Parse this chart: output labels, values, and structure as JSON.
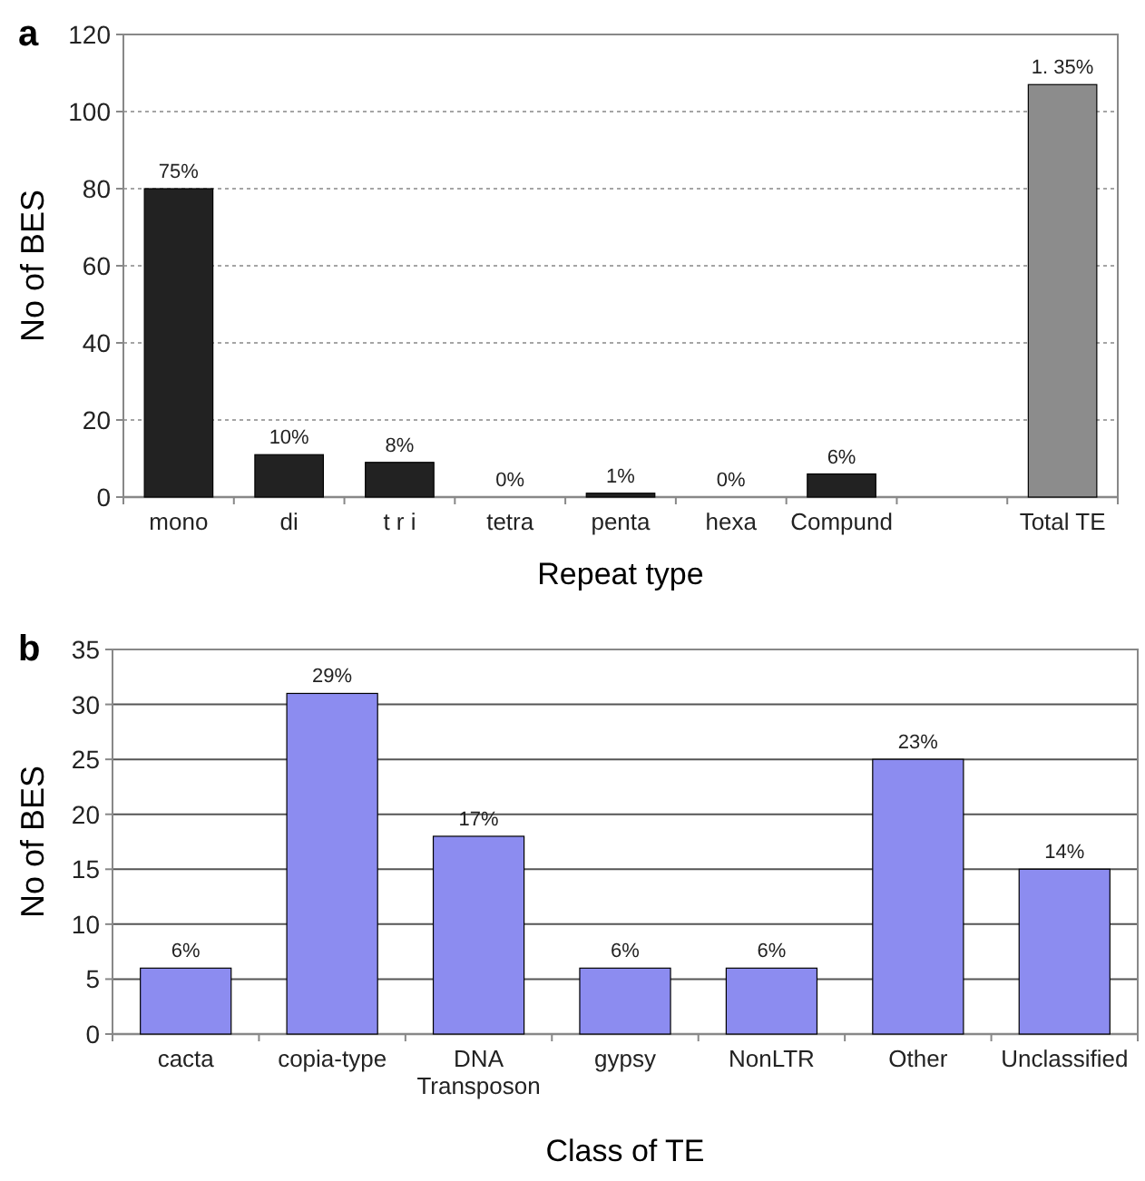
{
  "chart_data": [
    {
      "type": "bar",
      "title": "a",
      "xlabel": "Repeat type",
      "ylabel": "No of BES",
      "categories": [
        "mono",
        "di",
        "t r i",
        "tetra",
        "penta",
        "hexa",
        "Compund",
        null,
        "Total TE"
      ],
      "values": [
        80,
        11,
        9,
        0,
        1,
        0,
        6,
        null,
        107
      ],
      "colors": [
        "#222222",
        "#222222",
        "#222222",
        "#222222",
        "#222222",
        "#222222",
        "#222222",
        null,
        "#8c8c8c"
      ],
      "annotations": [
        {
          "text": "75%",
          "x": "mono",
          "y": 80
        },
        {
          "text": "10%",
          "x": "di",
          "y": 11
        },
        {
          "text": "8%",
          "x": "t r i",
          "y": 9
        },
        {
          "text": "0%",
          "x": "tetra",
          "y": 0
        },
        {
          "text": "1%",
          "x": "penta",
          "y": 1
        },
        {
          "text": "0%",
          "x": "hexa",
          "y": 0
        },
        {
          "text": "6%",
          "x": "Compund",
          "y": 6
        },
        {
          "text": "1. 35%",
          "x": "Total TE",
          "y": 107
        }
      ],
      "ylim": [
        0,
        120
      ],
      "yticks": [
        0,
        20,
        40,
        60,
        80,
        100,
        120
      ],
      "grid": "y"
    },
    {
      "type": "bar",
      "title": "b",
      "xlabel": "Class of TE",
      "ylabel": "No of BES",
      "categories": [
        "cacta",
        "copia-type",
        "DNA Transposon",
        "gypsy",
        "NonLTR",
        "Other",
        "Unclassified"
      ],
      "values": [
        6,
        31,
        18,
        6,
        6,
        25,
        15
      ],
      "color": "#8c8cf0",
      "annotations": [
        {
          "text": "6%",
          "x": "cacta",
          "y": 6
        },
        {
          "text": "29%",
          "x": "copia-type",
          "y": 31
        },
        {
          "text": "17%",
          "x": "DNA Transposon",
          "y": 18
        },
        {
          "text": "6%",
          "x": "gypsy",
          "y": 6
        },
        {
          "text": "6%",
          "x": "NonLTR",
          "y": 6
        },
        {
          "text": "23%",
          "x": "Other",
          "y": 25
        },
        {
          "text": "14%",
          "x": "Unclassified",
          "y": 15
        }
      ],
      "ylim": [
        0,
        35
      ],
      "yticks": [
        0,
        5,
        10,
        15,
        20,
        25,
        30,
        35
      ],
      "grid": "y"
    }
  ]
}
